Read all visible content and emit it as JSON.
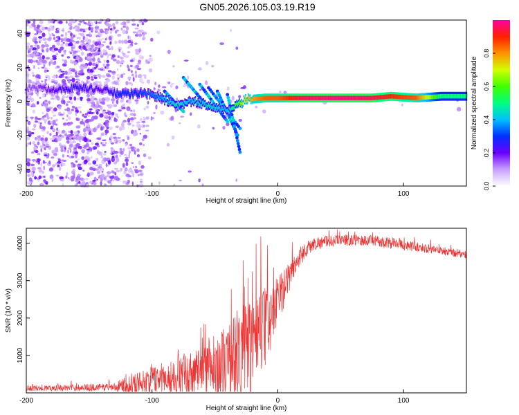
{
  "title": "GN05.2026.105.03.19.R19",
  "chart_data": [
    {
      "type": "heatmap",
      "xlabel": "Height of straight line (km)",
      "ylabel": "Frequency (Hz)",
      "xlim": [
        -200,
        150
      ],
      "ylim": [
        -50,
        48
      ],
      "xticks": [
        -200,
        -100,
        0,
        100
      ],
      "yticks": [
        -40,
        -20,
        0,
        20,
        40
      ],
      "colorbar": {
        "label": "Normalized spectral amplitude",
        "range": [
          0,
          1
        ],
        "ticks": [
          0.0,
          0.2,
          0.4,
          0.6,
          0.8
        ],
        "tick_labels": [
          "0.0",
          "0.2",
          "0.4",
          "0.6",
          "0.8"
        ]
      },
      "ridge": [
        {
          "x": -195,
          "f": 8,
          "a": 0.15
        },
        {
          "x": -180,
          "f": 7,
          "a": 0.2
        },
        {
          "x": -160,
          "f": 8,
          "a": 0.25
        },
        {
          "x": -140,
          "f": 7,
          "a": 0.2
        },
        {
          "x": -125,
          "f": 4,
          "a": 0.3
        },
        {
          "x": -110,
          "f": 5,
          "a": 0.3
        },
        {
          "x": -100,
          "f": 4,
          "a": 0.35
        },
        {
          "x": -90,
          "f": 1,
          "a": 0.4
        },
        {
          "x": -80,
          "f": -3,
          "a": 0.45
        },
        {
          "x": -70,
          "f": 0,
          "a": 0.4
        },
        {
          "x": -55,
          "f": -2,
          "a": 0.45
        },
        {
          "x": -40,
          "f": -6,
          "a": 0.4
        },
        {
          "x": -25,
          "f": 1,
          "a": 0.75
        },
        {
          "x": -10,
          "f": 2,
          "a": 0.85
        },
        {
          "x": 0,
          "f": 2,
          "a": 0.85
        },
        {
          "x": 20,
          "f": 2,
          "a": 0.95
        },
        {
          "x": 50,
          "f": 2,
          "a": 0.98
        },
        {
          "x": 75,
          "f": 2,
          "a": 0.95
        },
        {
          "x": 90,
          "f": 3,
          "a": 0.9
        },
        {
          "x": 110,
          "f": 2,
          "a": 0.85
        },
        {
          "x": 130,
          "f": 3,
          "a": 0.5
        },
        {
          "x": 150,
          "f": 3,
          "a": 0.5
        }
      ]
    },
    {
      "type": "line",
      "xlabel": "Height of straight line (km)",
      "ylabel": "SNR (10 * v/v)",
      "xlim": [
        -200,
        150
      ],
      "ylim": [
        0,
        4400
      ],
      "xticks": [
        -200,
        -100,
        0,
        100
      ],
      "yticks": [
        1000,
        2000,
        3000,
        4000
      ],
      "series": [
        {
          "name": "SNR",
          "color": "#ee3333",
          "x": [
            -200,
            -180,
            -160,
            -140,
            -130,
            -120,
            -110,
            -100,
            -90,
            -80,
            -70,
            -60,
            -50,
            -40,
            -35,
            -30,
            -25,
            -20,
            -15,
            -10,
            -5,
            0,
            5,
            10,
            15,
            20,
            25,
            30,
            40,
            50,
            60,
            70,
            80,
            90,
            100,
            110,
            120,
            130,
            140,
            150
          ],
          "mean": [
            120,
            130,
            140,
            150,
            160,
            200,
            280,
            350,
            400,
            450,
            500,
            550,
            650,
            800,
            900,
            1000,
            1150,
            1300,
            1500,
            1700,
            2000,
            2400,
            2800,
            3200,
            3500,
            3750,
            3900,
            4000,
            4050,
            4080,
            4080,
            4070,
            4050,
            4000,
            3950,
            3900,
            3850,
            3800,
            3750,
            3700
          ],
          "spread": [
            80,
            80,
            90,
            100,
            120,
            250,
            300,
            350,
            400,
            500,
            600,
            750,
            900,
            1100,
            1200,
            1300,
            1400,
            1400,
            1300,
            1100,
            900,
            700,
            500,
            400,
            300,
            250,
            200,
            180,
            150,
            150,
            150,
            150,
            150,
            150,
            140,
            130,
            120,
            120,
            120,
            120
          ]
        }
      ]
    }
  ]
}
